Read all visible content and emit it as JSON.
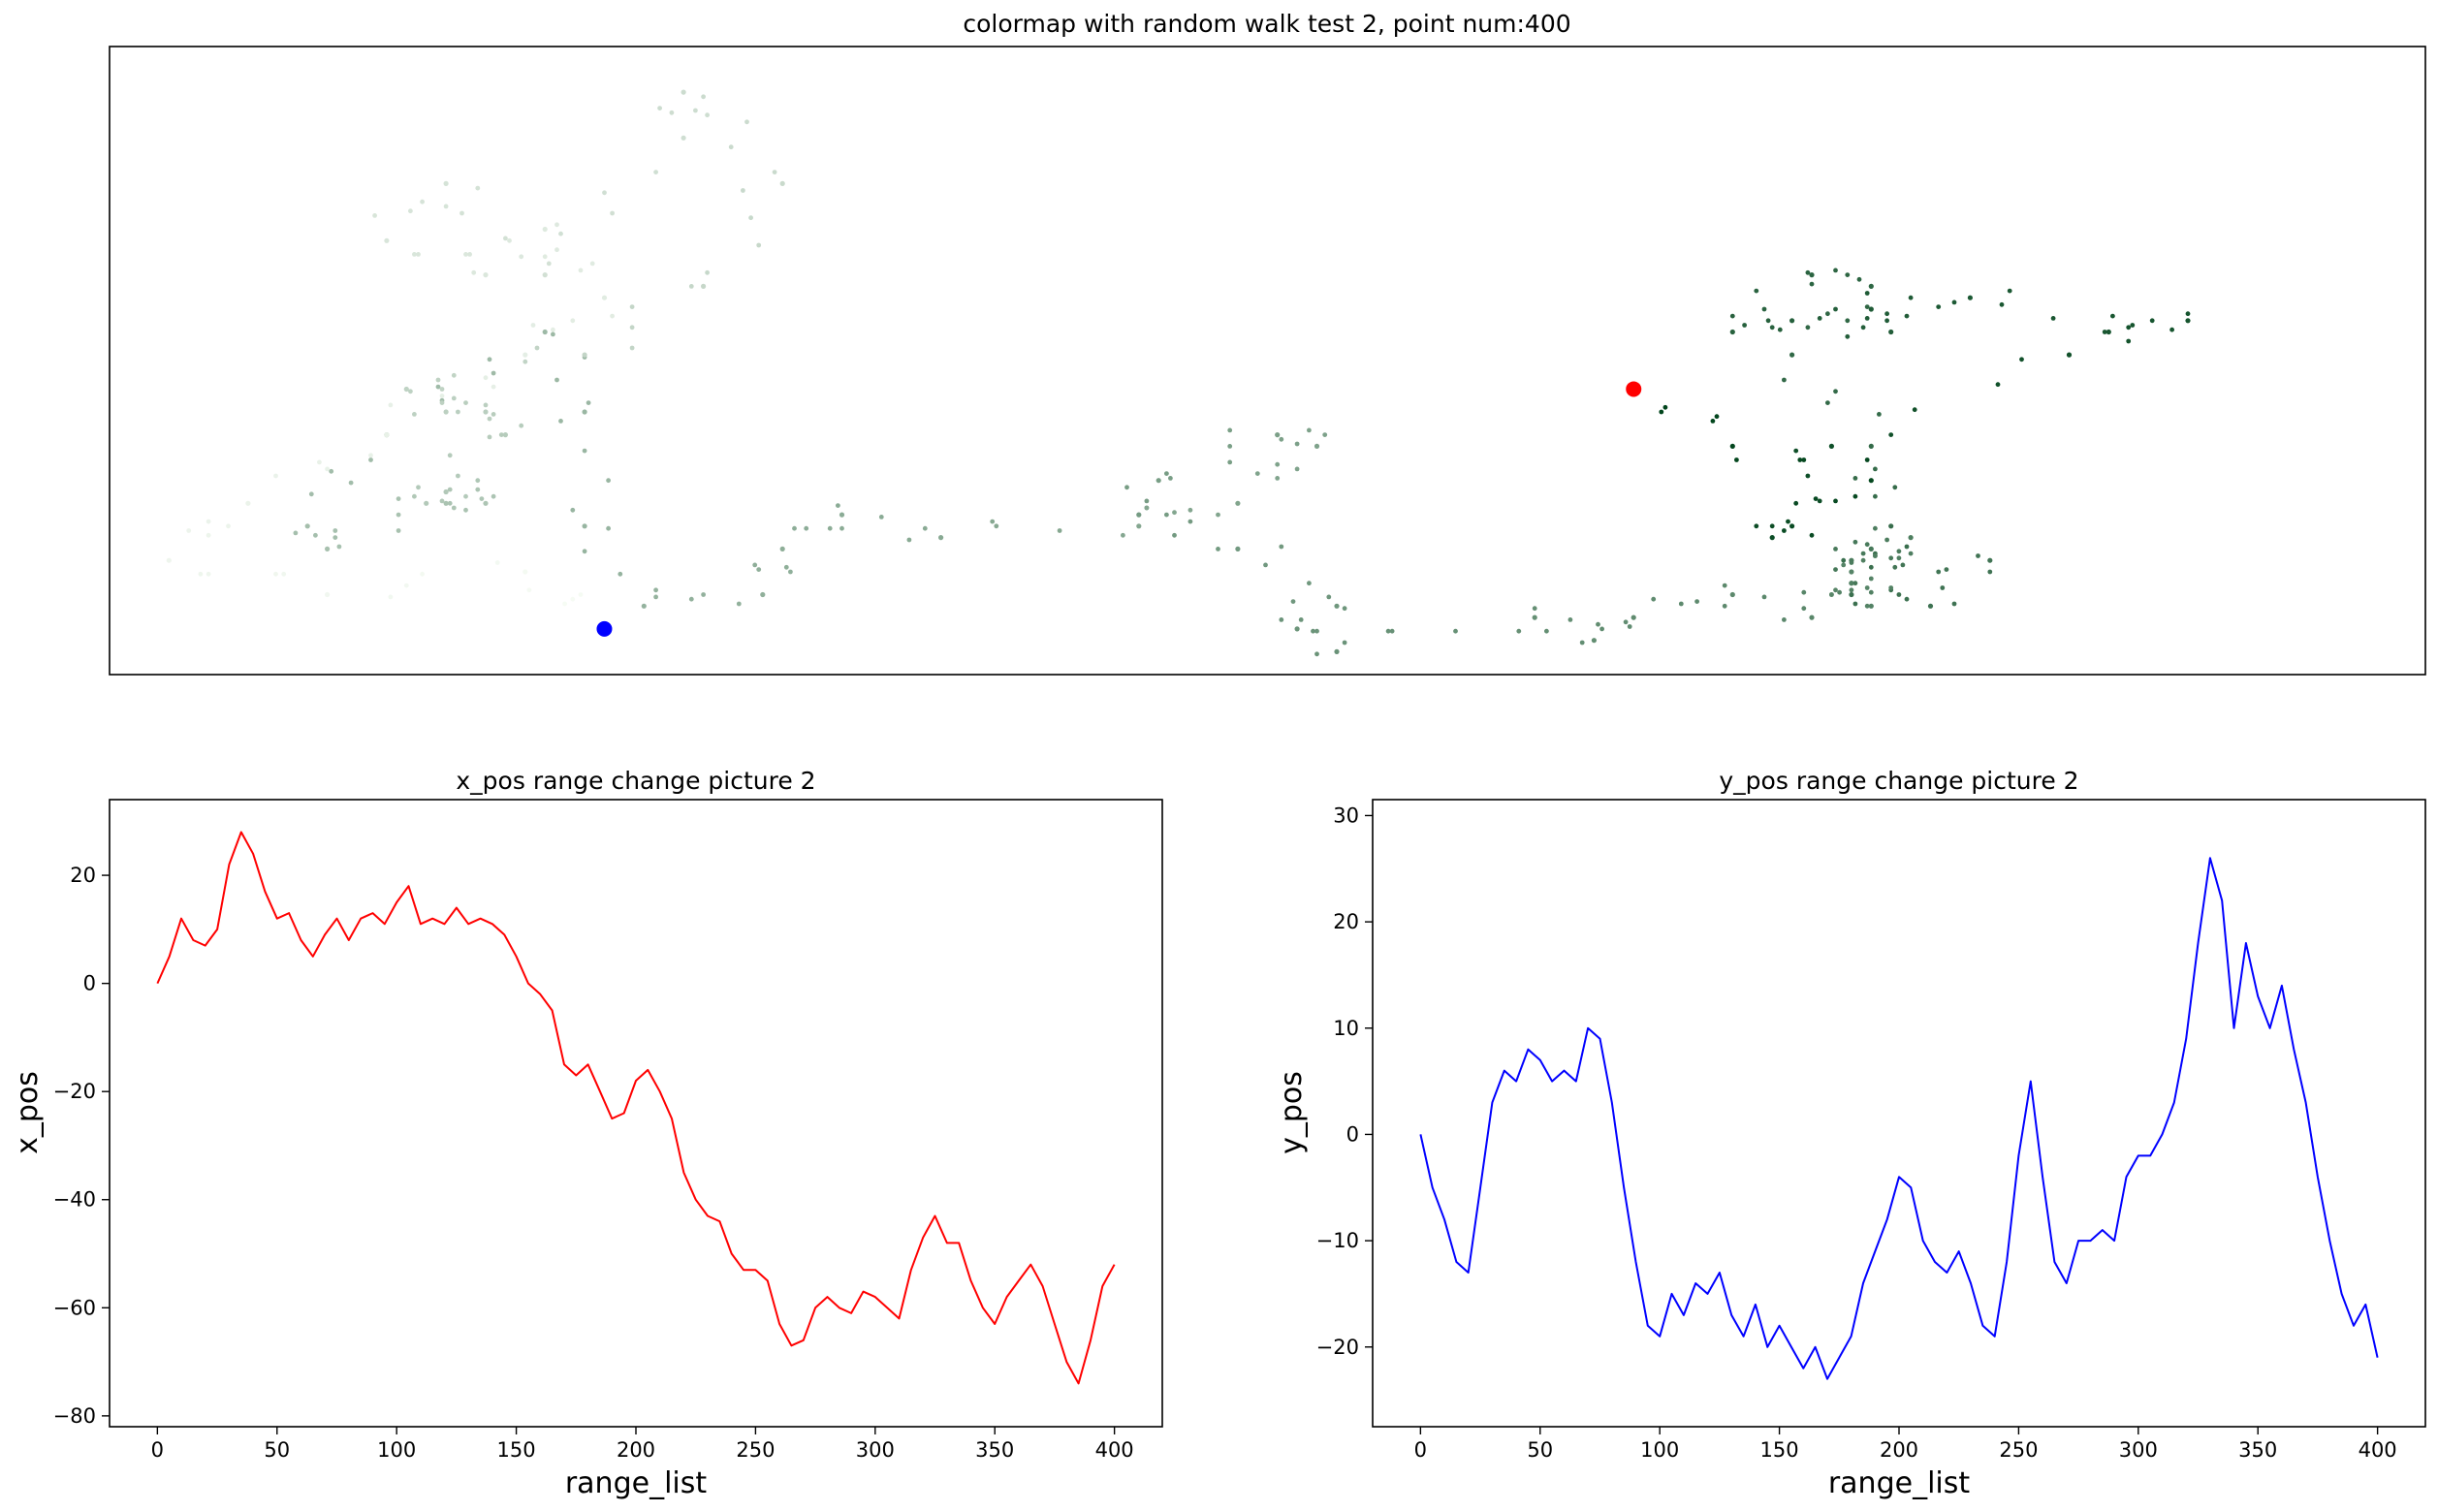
{
  "chart_data": [
    {
      "type": "scatter",
      "title": "colormap with random walk test 2, point num:400",
      "colormap": "Greens (reversed: early points dark, late points light)",
      "axes_visible": false,
      "start_marker": {
        "x": 0,
        "y": 0,
        "color": "#ff0000"
      },
      "end_marker": {
        "x": -52,
        "y": -21,
        "color": "#0000ff"
      },
      "x": [
        0,
        -1,
        -2,
        -1,
        0,
        2,
        3,
        4,
        5,
        6,
        6,
        7,
        8,
        9,
        10,
        11,
        12,
        13,
        14,
        14
      ],
      "y": [
        0,
        -1,
        -2,
        -3,
        -2,
        -3,
        -4,
        -5,
        -6,
        -7,
        -6,
        -7,
        -8,
        -9,
        -8,
        -9,
        -10,
        -11,
        -12,
        -11
      ],
      "point_color_dark": "#00441b",
      "point_color_light": "#f7fcf5",
      "xlim": [
        -77,
        40
      ],
      "ylim": [
        -25,
        30
      ]
    },
    {
      "type": "line",
      "title": "x_pos range change picture 2",
      "xlabel": "range_list",
      "ylabel": "x_pos",
      "color": "#ff0000",
      "xlim": [
        -20,
        420
      ],
      "ylim": [
        -82,
        34
      ],
      "xticks": [
        "0",
        "50",
        "100",
        "150",
        "200",
        "250",
        "300",
        "350",
        "400"
      ],
      "yticks": [
        "20",
        "0",
        "−20",
        "−40",
        "−60",
        "−80"
      ],
      "x": [
        0,
        5,
        10,
        15,
        20,
        25,
        30,
        35,
        40,
        45,
        50,
        55,
        60,
        65,
        70,
        75,
        80,
        85,
        90,
        95,
        100,
        105,
        110,
        115,
        120,
        125,
        130,
        135,
        140,
        145,
        150,
        155,
        160,
        165,
        170,
        175,
        180,
        185,
        190,
        195,
        200,
        205,
        210,
        215,
        220,
        225,
        230,
        235,
        240,
        245,
        250,
        255,
        260,
        265,
        270,
        275,
        280,
        285,
        290,
        295,
        300,
        305,
        310,
        315,
        320,
        325,
        330,
        335,
        340,
        345,
        350,
        355,
        360,
        365,
        370,
        375,
        380,
        385,
        390,
        395,
        400
      ],
      "y": [
        0,
        5,
        12,
        8,
        7,
        10,
        22,
        28,
        24,
        17,
        12,
        13,
        8,
        5,
        9,
        12,
        8,
        12,
        13,
        11,
        15,
        18,
        11,
        12,
        11,
        14,
        11,
        12,
        11,
        9,
        5,
        0,
        -2,
        -5,
        -15,
        -17,
        -15,
        -20,
        -25,
        -24,
        -18,
        -16,
        -20,
        -25,
        -35,
        -40,
        -43,
        -44,
        -50,
        -53,
        -53,
        -55,
        -63,
        -67,
        -66,
        -60,
        -58,
        -60,
        -61,
        -57,
        -58,
        -60,
        -62,
        -53,
        -47,
        -43,
        -48,
        -48,
        -55,
        -60,
        -63,
        -58,
        -55,
        -52,
        -56,
        -63,
        -70,
        -74,
        -66,
        -56,
        -52
      ]
    },
    {
      "type": "line",
      "title": "y_pos range change picture 2",
      "xlabel": "range_list",
      "ylabel": "y_pos",
      "color": "#0000ff",
      "xlim": [
        -20,
        420
      ],
      "ylim": [
        -27.5,
        31.5
      ],
      "xticks": [
        "0",
        "50",
        "100",
        "150",
        "200",
        "250",
        "300",
        "350",
        "400"
      ],
      "yticks": [
        "30",
        "20",
        "10",
        "0",
        "−10",
        "−20"
      ],
      "x": [
        0,
        5,
        10,
        15,
        20,
        25,
        30,
        35,
        40,
        45,
        50,
        55,
        60,
        65,
        70,
        75,
        80,
        85,
        90,
        95,
        100,
        105,
        110,
        115,
        120,
        125,
        130,
        135,
        140,
        145,
        150,
        155,
        160,
        165,
        170,
        175,
        180,
        185,
        190,
        195,
        200,
        205,
        210,
        215,
        220,
        225,
        230,
        235,
        240,
        245,
        250,
        255,
        260,
        265,
        270,
        275,
        280,
        285,
        290,
        295,
        300,
        305,
        310,
        315,
        320,
        325,
        330,
        335,
        340,
        345,
        350,
        355,
        360,
        365,
        370,
        375,
        380,
        385,
        390,
        395,
        400
      ],
      "y": [
        0,
        -5,
        -8,
        -12,
        -13,
        -5,
        3,
        6,
        5,
        8,
        7,
        5,
        6,
        5,
        10,
        9,
        3,
        -5,
        -12,
        -18,
        -19,
        -15,
        -17,
        -14,
        -15,
        -13,
        -17,
        -19,
        -16,
        -20,
        -18,
        -20,
        -22,
        -20,
        -23,
        -21,
        -19,
        -14,
        -11,
        -8,
        -4,
        -5,
        -10,
        -12,
        -13,
        -11,
        -14,
        -18,
        -19,
        -12,
        -2,
        5,
        -4,
        -12,
        -14,
        -10,
        -10,
        -9,
        -10,
        -4,
        -2,
        -2,
        0,
        3,
        9,
        18,
        26,
        22,
        10,
        18,
        13,
        10,
        14,
        8,
        3,
        -4,
        -10,
        -15,
        -18,
        -16,
        -21
      ]
    }
  ]
}
